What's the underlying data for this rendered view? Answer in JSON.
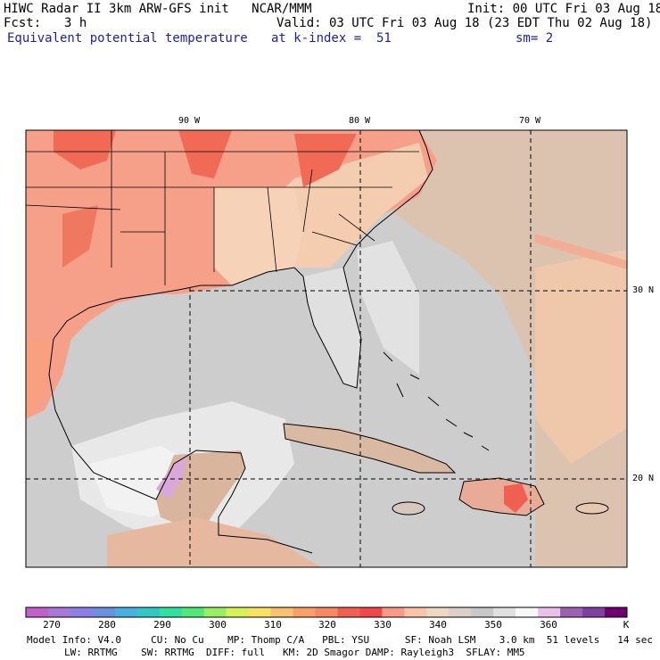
{
  "header": {
    "title": "HIWC Radar II 3km ARW-GFS init   NCAR/MMM",
    "init": "Init: 00 UTC Fri 03 Aug 18",
    "fcst_label": "Fcst:",
    "fcst_value": "3 h",
    "valid": "Valid: 03 UTC Fri 03 Aug 18 (23 EDT Thu 02 Aug 18)",
    "field": "Equivalent potential temperature",
    "level": "at k-index =  51",
    "smooth": "sm= 2"
  },
  "map": {
    "lon_labels": [
      "90 W",
      "80 W",
      "70 W"
    ],
    "lat_labels": [
      "30 N",
      "20 N"
    ]
  },
  "colorbar": {
    "labels": [
      "270",
      "280",
      "290",
      "300",
      "310",
      "320",
      "330",
      "340",
      "350",
      "360"
    ],
    "unit": "K",
    "colors": [
      "#c060c8",
      "#a878d8",
      "#8c80e8",
      "#6c90e0",
      "#48b0e0",
      "#30c8c0",
      "#30e0a0",
      "#50e878",
      "#98f060",
      "#d8f058",
      "#f8e060",
      "#f8c070",
      "#f8a068",
      "#f88860",
      "#f06050",
      "#f04848",
      "#f89a88",
      "#f8c4a8",
      "#eed8c4",
      "#dcd0c8",
      "#c8c8c8",
      "#e0e0e0",
      "#f8f8f8",
      "#e8c0e8",
      "#a060b0",
      "#8040a0",
      "#700070"
    ]
  },
  "footer": {
    "line1": "Model Info: V4.0     CU: No Cu    MP: Thomp C/A   PBL: YSU      SF: Noah LSM    3.0 km  51 levels   14 sec",
    "line2": "LW: RRTMG    SW: RRTMG  DIFF: full   KM: 2D Smagor DAMP: Rayleigh3  SFLAY: MM5"
  }
}
